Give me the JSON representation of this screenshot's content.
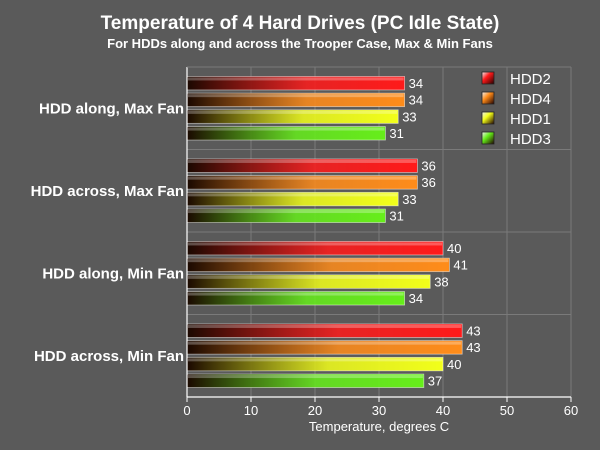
{
  "chart_data": {
    "type": "bar",
    "orientation": "horizontal",
    "title": "Temperature of 4 Hard Drives (PC Idle State)",
    "subtitle": "For HDDs along and across the Trooper Case, Max & Min Fans",
    "xlabel": "Temperature, degrees C",
    "xlim": [
      0,
      60
    ],
    "xticks": [
      0,
      10,
      20,
      30,
      40,
      50,
      60
    ],
    "grid": true,
    "legend_position": "top-right",
    "categories": [
      "HDD along, Max Fan",
      "HDD across, Max Fan",
      "HDD along, Min Fan",
      "HDD across, Min Fan"
    ],
    "series": [
      {
        "name": "HDD2",
        "values": [
          34,
          36,
          40,
          43
        ],
        "color": "#ff1a1a"
      },
      {
        "name": "HDD4",
        "values": [
          34,
          36,
          41,
          43
        ],
        "color": "#ff8c1a"
      },
      {
        "name": "HDD1",
        "values": [
          33,
          33,
          38,
          40
        ],
        "color": "#f2ff1a"
      },
      {
        "name": "HDD3",
        "values": [
          31,
          31,
          34,
          37
        ],
        "color": "#66ee1a"
      }
    ]
  }
}
